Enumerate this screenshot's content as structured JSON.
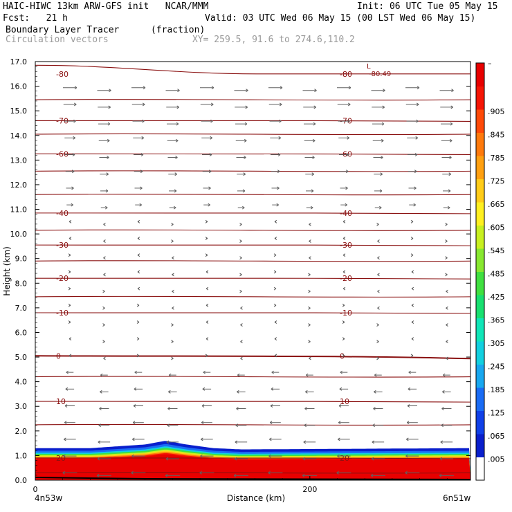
{
  "header": {
    "line1_left": "HAIC-HIWC 13km ARW-GFS init   NCAR/MMM",
    "line1_right": "Init: 06 UTC Tue 05 May 15",
    "line2_left": "Fcst:   21 h",
    "line2_right": "Valid: 03 UTC Wed 06 May 15 (00 LST Wed 06 May 15)",
    "line3_left": "Boundary Layer Tracer",
    "line3_units": "(fraction)",
    "line4_left": "Circulation vectors",
    "line4_xy": "XY= 259.5, 91.6 to 274.6,110.2"
  },
  "chart_data": {
    "type": "heatmap",
    "xlabel": "Distance (km)",
    "ylabel": "Height (km)",
    "xlim": [
      0,
      317
    ],
    "ylim": [
      0.0,
      17.0
    ],
    "x_ticks": [
      0,
      200
    ],
    "x_end_labels": {
      "left": "4n53w",
      "right": "6n51w"
    },
    "y_ticks": [
      "0.0",
      "1.0",
      "2.0",
      "3.0",
      "4.0",
      "5.0",
      "6.0",
      "7.0",
      "8.0",
      "9.0",
      "10.0",
      "11.0",
      "12.0",
      "13.0",
      "14.0",
      "15.0",
      "16.0",
      "17.0"
    ],
    "colorbar": {
      "labels": [
        ".005",
        ".065",
        ".125",
        ".185",
        ".245",
        ".305",
        ".365",
        ".425",
        ".485",
        ".545",
        ".605",
        ".665",
        ".725",
        ".785",
        ".845",
        ".905",
        "–"
      ],
      "colors": [
        "#ffffff",
        "#0a1fcc",
        "#1040e8",
        "#1a6cf5",
        "#18a8f0",
        "#12d0e0",
        "#10e6b8",
        "#18e070",
        "#40e040",
        "#88e830",
        "#c8f020",
        "#fff020",
        "#ffcc18",
        "#ffa010",
        "#ff7a0c",
        "#ff4a08",
        "#f51505",
        "#e80000"
      ]
    },
    "isotherms": [
      {
        "label": "20",
        "y_km": 0.9
      },
      {
        "label": "10",
        "y_km": 3.2
      },
      {
        "label": "0",
        "y_km": 5.05
      },
      {
        "label": "-10",
        "y_km": 6.8
      },
      {
        "label": "-20",
        "y_km": 8.2
      },
      {
        "label": "-30",
        "y_km": 9.55
      },
      {
        "label": "-40",
        "y_km": 10.85
      },
      {
        "label": "-60",
        "y_km": 13.25
      },
      {
        "label": "-70",
        "y_km": 14.6
      },
      {
        "label": "-80",
        "y_km": 16.5
      }
    ],
    "extremum_label": {
      "label": "L",
      "value": "-80.49"
    },
    "pbl_top_km": {
      "x": [
        0,
        40,
        80,
        95,
        110,
        130,
        150,
        317
      ],
      "y": [
        1.3,
        1.3,
        1.45,
        1.6,
        1.45,
        1.3,
        1.25,
        1.3
      ]
    }
  }
}
